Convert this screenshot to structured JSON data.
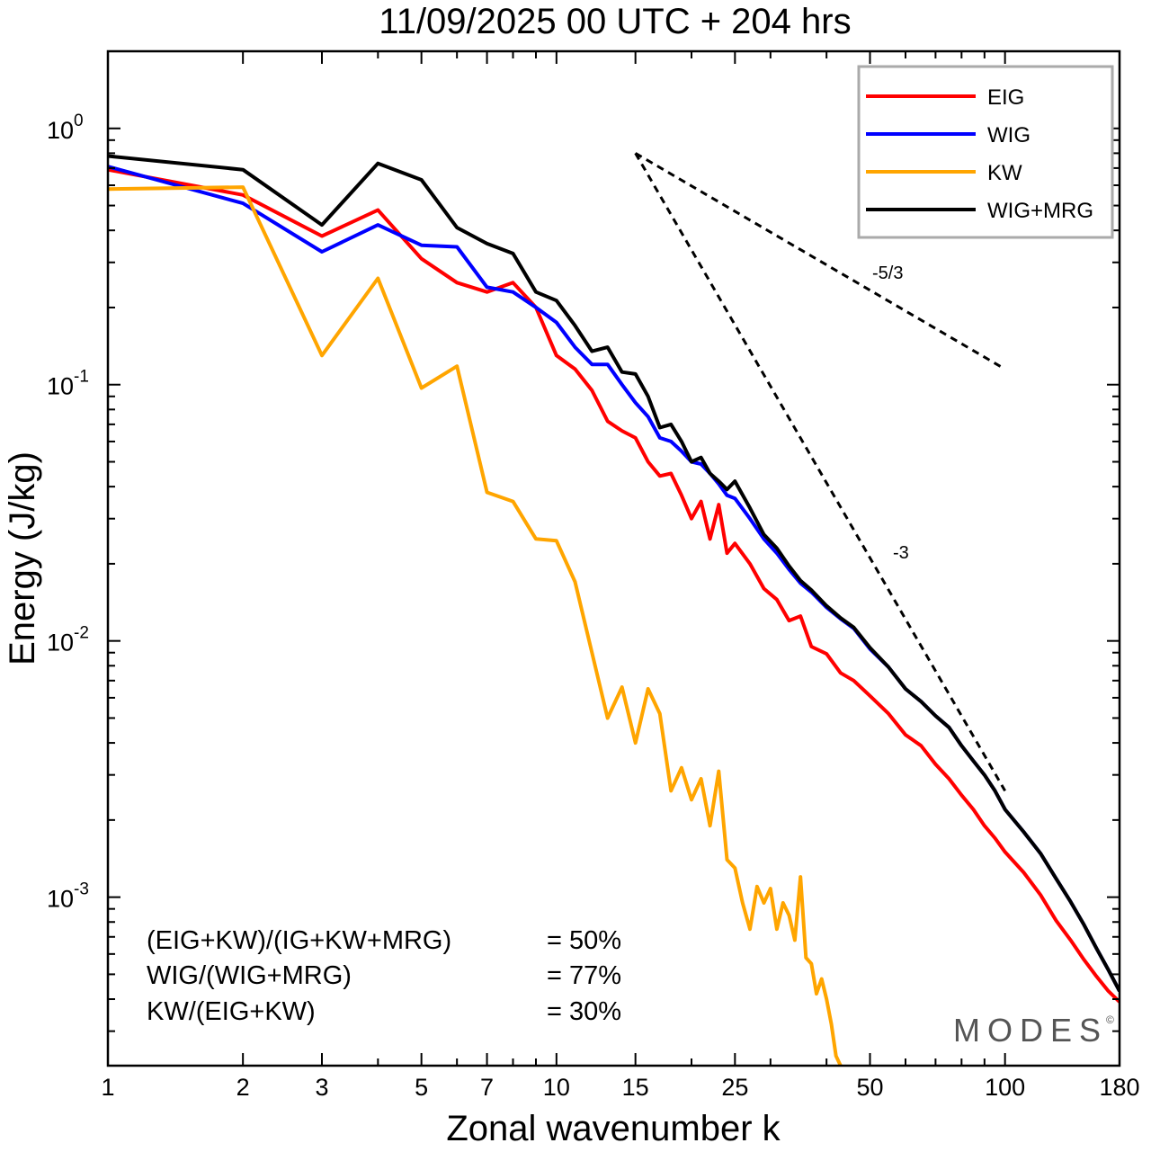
{
  "chart_data": {
    "type": "line",
    "title": "11/09/2025  00 UTC  + 204 hrs",
    "xlabel": "Zonal wavenumber k",
    "ylabel": "Energy (J/kg)",
    "xscale": "log",
    "yscale": "log",
    "xlim": [
      1,
      180
    ],
    "ylim": [
      0.00022,
      2.0
    ],
    "xticks": [
      1,
      2,
      3,
      5,
      7,
      10,
      15,
      25,
      50,
      100,
      180
    ],
    "yticks": [
      {
        "base": "10",
        "exp": "0",
        "value": 1
      },
      {
        "base": "10",
        "exp": "-1",
        "value": 0.1
      },
      {
        "base": "10",
        "exp": "-2",
        "value": 0.01
      },
      {
        "base": "10",
        "exp": "-3",
        "value": 0.001
      }
    ],
    "legend": {
      "position": "top-right"
    },
    "series": [
      {
        "name": "EIG",
        "color": "#ff0000",
        "points": [
          [
            1,
            0.69
          ],
          [
            2,
            0.55
          ],
          [
            3,
            0.38
          ],
          [
            4,
            0.48
          ],
          [
            5,
            0.31
          ],
          [
            6,
            0.25
          ],
          [
            7,
            0.23
          ],
          [
            8,
            0.25
          ],
          [
            9,
            0.2
          ],
          [
            10,
            0.13
          ],
          [
            11,
            0.115
          ],
          [
            12,
            0.095
          ],
          [
            13,
            0.072
          ],
          [
            14,
            0.066
          ],
          [
            15,
            0.062
          ],
          [
            16,
            0.05
          ],
          [
            17,
            0.044
          ],
          [
            18,
            0.045
          ],
          [
            19,
            0.037
          ],
          [
            20,
            0.03
          ],
          [
            21,
            0.035
          ],
          [
            22,
            0.025
          ],
          [
            23,
            0.034
          ],
          [
            24,
            0.022
          ],
          [
            25,
            0.024
          ],
          [
            27,
            0.02
          ],
          [
            29,
            0.016
          ],
          [
            31,
            0.0145
          ],
          [
            33,
            0.012
          ],
          [
            35,
            0.0125
          ],
          [
            37,
            0.0095
          ],
          [
            40,
            0.0089
          ],
          [
            43,
            0.0075
          ],
          [
            46,
            0.007
          ],
          [
            50,
            0.0061
          ],
          [
            55,
            0.0052
          ],
          [
            60,
            0.0043
          ],
          [
            65,
            0.0039
          ],
          [
            70,
            0.0033
          ],
          [
            75,
            0.0029
          ],
          [
            80,
            0.0025
          ],
          [
            85,
            0.0022
          ],
          [
            90,
            0.0019
          ],
          [
            95,
            0.0017
          ],
          [
            100,
            0.0015
          ],
          [
            110,
            0.00125
          ],
          [
            120,
            0.00102
          ],
          [
            130,
            0.00081
          ],
          [
            140,
            0.00068
          ],
          [
            150,
            0.00057
          ],
          [
            160,
            0.00049
          ],
          [
            170,
            0.00043
          ],
          [
            180,
            0.00039
          ]
        ]
      },
      {
        "name": "WIG",
        "color": "#0000ff",
        "points": [
          [
            1,
            0.71
          ],
          [
            2,
            0.51
          ],
          [
            3,
            0.33
          ],
          [
            4,
            0.42
          ],
          [
            5,
            0.35
          ],
          [
            6,
            0.345
          ],
          [
            7,
            0.24
          ],
          [
            8,
            0.23
          ],
          [
            9,
            0.2
          ],
          [
            10,
            0.175
          ],
          [
            11,
            0.14
          ],
          [
            12,
            0.12
          ],
          [
            13,
            0.12
          ],
          [
            14,
            0.1
          ],
          [
            15,
            0.085
          ],
          [
            16,
            0.075
          ],
          [
            17,
            0.062
          ],
          [
            18,
            0.06
          ],
          [
            19,
            0.055
          ],
          [
            20,
            0.05
          ],
          [
            21,
            0.049
          ],
          [
            22,
            0.045
          ],
          [
            23,
            0.041
          ],
          [
            24,
            0.037
          ],
          [
            25,
            0.036
          ],
          [
            27,
            0.03
          ],
          [
            29,
            0.025
          ],
          [
            31,
            0.022
          ],
          [
            33,
            0.019
          ],
          [
            35,
            0.0168
          ],
          [
            37,
            0.0155
          ],
          [
            40,
            0.0135
          ],
          [
            43,
            0.0122
          ],
          [
            46,
            0.0112
          ],
          [
            50,
            0.0093
          ],
          [
            55,
            0.0079
          ],
          [
            60,
            0.0065
          ],
          [
            65,
            0.0058
          ],
          [
            70,
            0.0051
          ],
          [
            75,
            0.0046
          ],
          [
            80,
            0.0039
          ],
          [
            85,
            0.0034
          ],
          [
            90,
            0.003
          ],
          [
            95,
            0.0026
          ],
          [
            100,
            0.0022
          ],
          [
            110,
            0.0018
          ],
          [
            120,
            0.00148
          ],
          [
            130,
            0.00118
          ],
          [
            140,
            0.00096
          ],
          [
            150,
            0.00078
          ],
          [
            160,
            0.00063
          ],
          [
            170,
            0.00052
          ],
          [
            180,
            0.00043
          ]
        ]
      },
      {
        "name": "KW",
        "color": "#ffa500",
        "points": [
          [
            1,
            0.58
          ],
          [
            2,
            0.59
          ],
          [
            3,
            0.13
          ],
          [
            4,
            0.26
          ],
          [
            5,
            0.097
          ],
          [
            6,
            0.118
          ],
          [
            7,
            0.038
          ],
          [
            8,
            0.035
          ],
          [
            9,
            0.025
          ],
          [
            10,
            0.0246
          ],
          [
            11,
            0.017
          ],
          [
            12,
            0.009
          ],
          [
            13,
            0.005
          ],
          [
            14,
            0.0066
          ],
          [
            15,
            0.004
          ],
          [
            16,
            0.0065
          ],
          [
            17,
            0.0052
          ],
          [
            18,
            0.0026
          ],
          [
            19,
            0.0032
          ],
          [
            20,
            0.0024
          ],
          [
            21,
            0.0029
          ],
          [
            22,
            0.0019
          ],
          [
            23,
            0.0031
          ],
          [
            24,
            0.0014
          ],
          [
            25,
            0.0013
          ],
          [
            26,
            0.00095
          ],
          [
            27,
            0.00075
          ],
          [
            28,
            0.0011
          ],
          [
            29,
            0.00095
          ],
          [
            30,
            0.00108
          ],
          [
            31,
            0.00075
          ],
          [
            32,
            0.00095
          ],
          [
            33,
            0.00085
          ],
          [
            34,
            0.00068
          ],
          [
            35,
            0.0012
          ],
          [
            36,
            0.00058
          ],
          [
            37,
            0.00055
          ],
          [
            38,
            0.00042
          ],
          [
            39,
            0.00048
          ],
          [
            40,
            0.0004
          ],
          [
            41,
            0.00032
          ],
          [
            42,
            0.00024
          ],
          [
            43,
            0.00022
          ]
        ]
      },
      {
        "name": "WIG+MRG",
        "color": "#000000",
        "points": [
          [
            1,
            0.78
          ],
          [
            2,
            0.69
          ],
          [
            3,
            0.42
          ],
          [
            4,
            0.73
          ],
          [
            5,
            0.63
          ],
          [
            6,
            0.41
          ],
          [
            7,
            0.355
          ],
          [
            8,
            0.325
          ],
          [
            9,
            0.23
          ],
          [
            10,
            0.213
          ],
          [
            11,
            0.17
          ],
          [
            12,
            0.135
          ],
          [
            13,
            0.14
          ],
          [
            14,
            0.112
          ],
          [
            15,
            0.11
          ],
          [
            16,
            0.09
          ],
          [
            17,
            0.068
          ],
          [
            18,
            0.07
          ],
          [
            19,
            0.06
          ],
          [
            20,
            0.05
          ],
          [
            21,
            0.052
          ],
          [
            22,
            0.045
          ],
          [
            23,
            0.042
          ],
          [
            24,
            0.039
          ],
          [
            25,
            0.042
          ],
          [
            27,
            0.033
          ],
          [
            29,
            0.026
          ],
          [
            31,
            0.023
          ],
          [
            33,
            0.0196
          ],
          [
            35,
            0.0172
          ],
          [
            37,
            0.0158
          ],
          [
            40,
            0.0137
          ],
          [
            43,
            0.0123
          ],
          [
            46,
            0.0113
          ],
          [
            50,
            0.0094
          ],
          [
            55,
            0.0079
          ],
          [
            60,
            0.0065
          ],
          [
            65,
            0.0058
          ],
          [
            70,
            0.0051
          ],
          [
            75,
            0.0046
          ],
          [
            80,
            0.0039
          ],
          [
            85,
            0.0034
          ],
          [
            90,
            0.003
          ],
          [
            95,
            0.0026
          ],
          [
            100,
            0.0022
          ],
          [
            110,
            0.0018
          ],
          [
            120,
            0.00148
          ],
          [
            130,
            0.00118
          ],
          [
            140,
            0.00096
          ],
          [
            150,
            0.00078
          ],
          [
            160,
            0.00063
          ],
          [
            170,
            0.00052
          ],
          [
            180,
            0.00043
          ]
        ]
      }
    ],
    "reference_lines": [
      {
        "label": "-5/3",
        "from": [
          15,
          0.8
        ],
        "to": [
          100,
          0.115
        ]
      },
      {
        "label": "-3",
        "from": [
          15,
          0.8
        ],
        "to": [
          100,
          0.0026
        ]
      }
    ],
    "annotations": [
      {
        "label": "(EIG+KW)/(IG+KW+MRG)",
        "value": "= 50%"
      },
      {
        "label": "WIG/(WIG+MRG)",
        "value": "= 77%"
      },
      {
        "label": "KW/(EIG+KW)",
        "value": "= 30%"
      }
    ],
    "watermark": "MODES",
    "watermark_mark": "©"
  }
}
